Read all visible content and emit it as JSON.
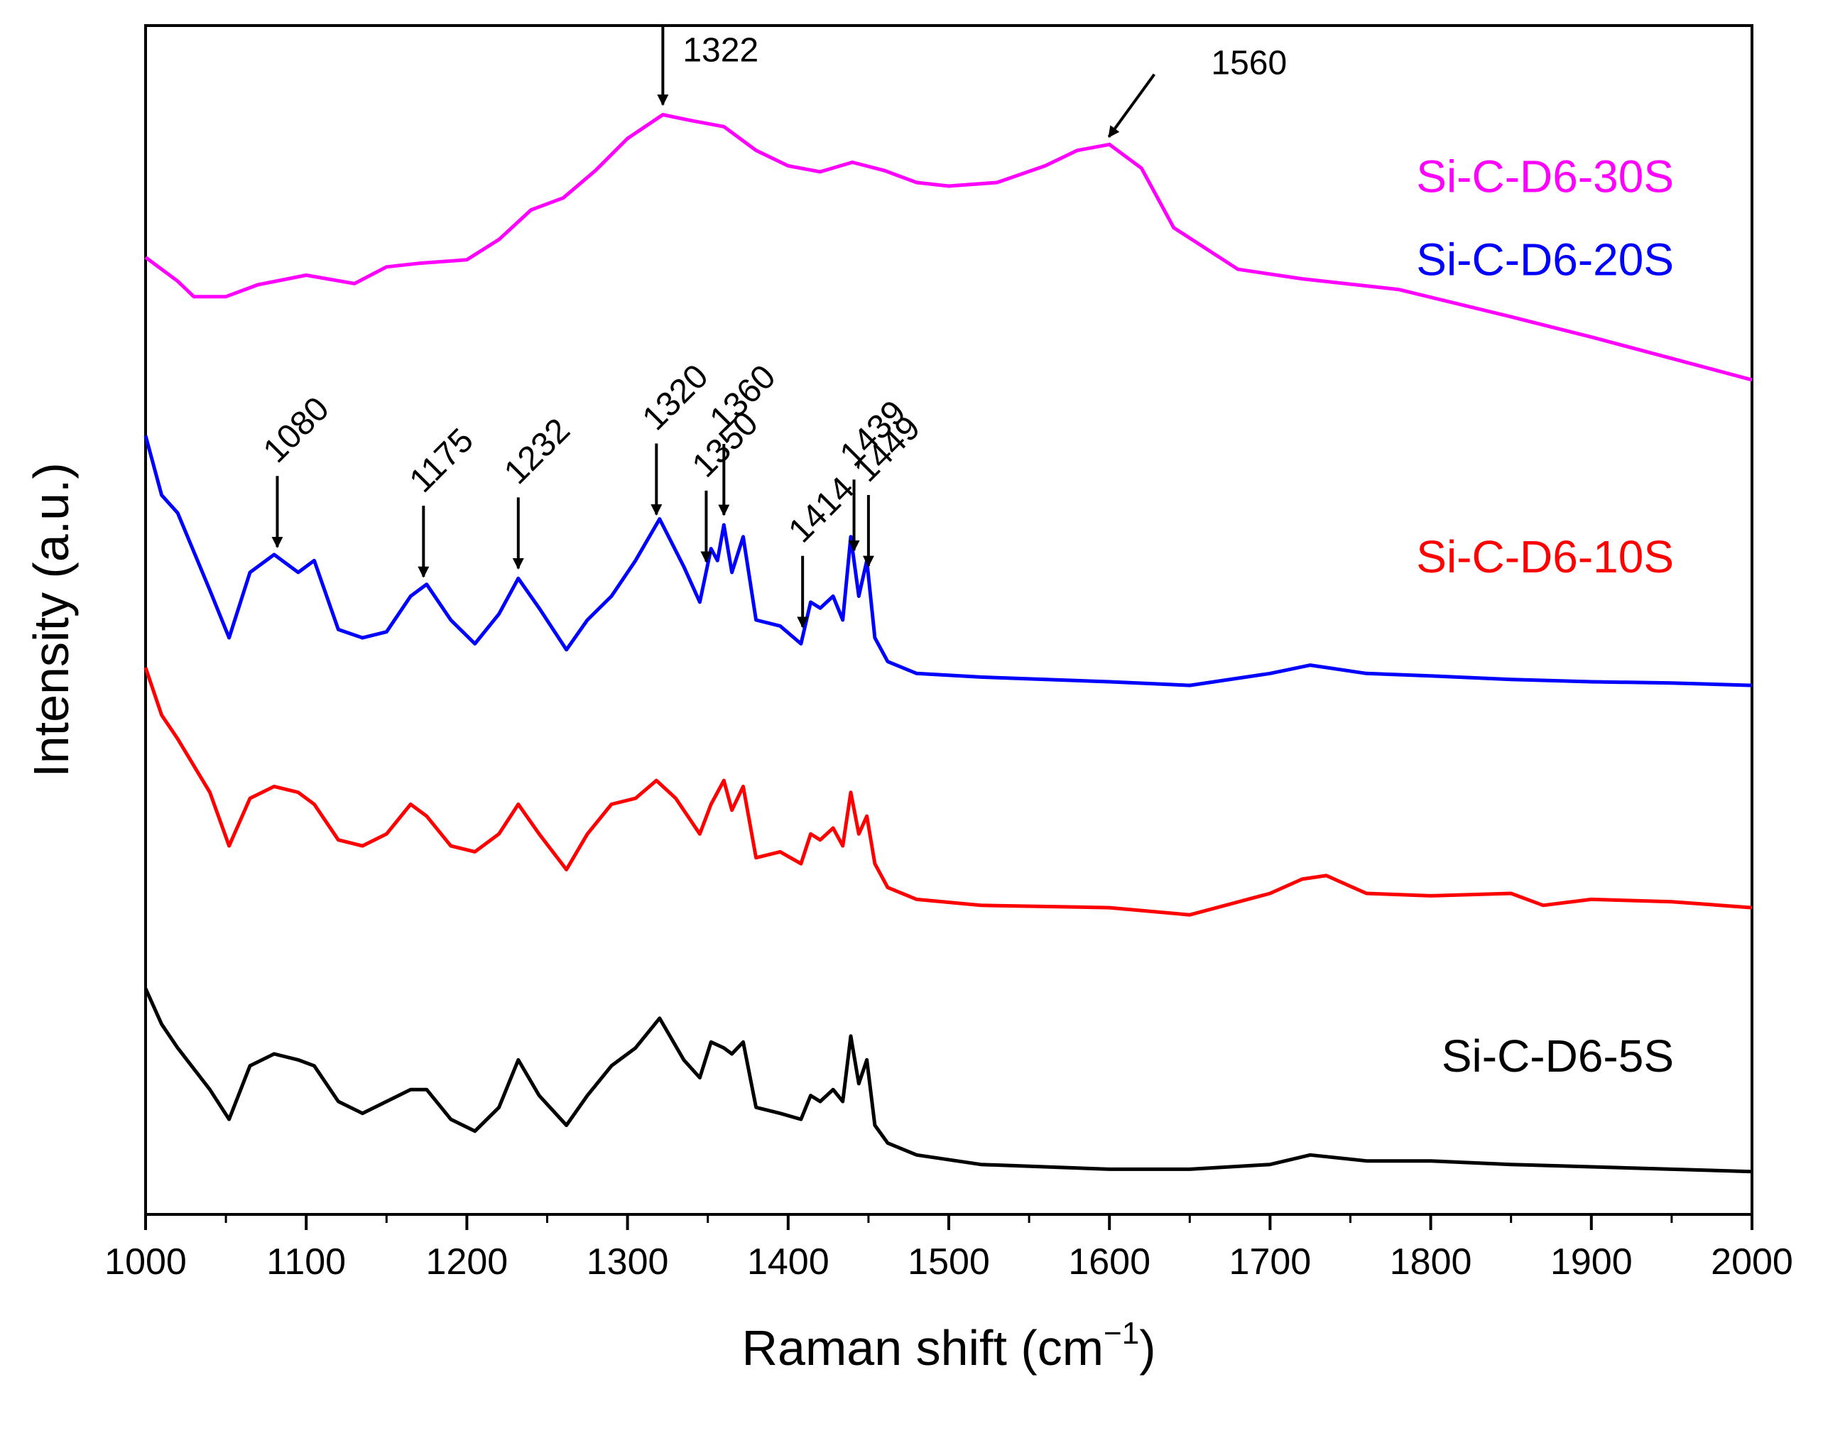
{
  "chart_data": {
    "type": "line",
    "xlabel": "Raman shift (cm",
    "xlabel_sup": "−1",
    "xlabel_close": ")",
    "ylabel": "Intensity (a.u.)",
    "xlim": [
      1000,
      2000
    ],
    "ylim": [
      0,
      10
    ],
    "grid": false,
    "x_ticks": [
      "1000",
      "1100",
      "1200",
      "1300",
      "1400",
      "1500",
      "1600",
      "1700",
      "1800",
      "1900",
      "2000"
    ],
    "series": [
      {
        "name": "Si-C-D6-30S",
        "color": "#ff00ff",
        "x": [
          1000,
          1020,
          1030,
          1050,
          1070,
          1100,
          1130,
          1150,
          1170,
          1200,
          1220,
          1240,
          1260,
          1280,
          1300,
          1322,
          1340,
          1360,
          1380,
          1400,
          1420,
          1440,
          1460,
          1480,
          1500,
          1530,
          1560,
          1580,
          1600,
          1620,
          1640,
          1680,
          1720,
          1780,
          1850,
          1900,
          1950,
          2000
        ],
        "y": [
          8.05,
          7.85,
          7.72,
          7.72,
          7.82,
          7.9,
          7.83,
          7.97,
          8.0,
          8.03,
          8.2,
          8.45,
          8.55,
          8.78,
          9.05,
          9.25,
          9.2,
          9.15,
          8.95,
          8.82,
          8.77,
          8.85,
          8.78,
          8.68,
          8.65,
          8.68,
          8.82,
          8.95,
          9.0,
          8.8,
          8.3,
          7.95,
          7.87,
          7.78,
          7.55,
          7.38,
          7.2,
          7.02
        ]
      },
      {
        "name": "Si-C-D6-20S",
        "color": "#0000ff",
        "x": [
          1000,
          1010,
          1020,
          1040,
          1052,
          1065,
          1080,
          1095,
          1105,
          1120,
          1135,
          1150,
          1165,
          1175,
          1190,
          1205,
          1220,
          1232,
          1245,
          1262,
          1275,
          1290,
          1305,
          1320,
          1335,
          1345,
          1352,
          1356,
          1360,
          1365,
          1372,
          1380,
          1395,
          1408,
          1414,
          1420,
          1428,
          1434,
          1439,
          1444,
          1449,
          1454,
          1462,
          1480,
          1520,
          1600,
          1650,
          1700,
          1725,
          1760,
          1800,
          1850,
          1900,
          1950,
          2000
        ],
        "y": [
          6.55,
          6.05,
          5.9,
          5.25,
          4.85,
          5.4,
          5.55,
          5.4,
          5.5,
          4.92,
          4.85,
          4.9,
          5.2,
          5.3,
          5.0,
          4.8,
          5.05,
          5.35,
          5.1,
          4.75,
          5.0,
          5.2,
          5.5,
          5.85,
          5.45,
          5.15,
          5.6,
          5.5,
          5.8,
          5.4,
          5.7,
          5.0,
          4.95,
          4.8,
          5.15,
          5.1,
          5.2,
          5.0,
          5.7,
          5.2,
          5.5,
          4.85,
          4.65,
          4.55,
          4.52,
          4.48,
          4.45,
          4.55,
          4.62,
          4.55,
          4.53,
          4.5,
          4.48,
          4.47,
          4.45
        ]
      },
      {
        "name": "Si-C-D6-10S",
        "color": "#ff0000",
        "x": [
          1000,
          1010,
          1020,
          1040,
          1052,
          1065,
          1080,
          1095,
          1105,
          1120,
          1135,
          1150,
          1165,
          1175,
          1190,
          1205,
          1220,
          1232,
          1245,
          1262,
          1275,
          1290,
          1305,
          1318,
          1330,
          1345,
          1352,
          1360,
          1365,
          1372,
          1380,
          1395,
          1408,
          1414,
          1420,
          1428,
          1434,
          1439,
          1444,
          1449,
          1454,
          1462,
          1480,
          1520,
          1600,
          1650,
          1700,
          1720,
          1735,
          1760,
          1800,
          1850,
          1870,
          1900,
          1950,
          2000
        ],
        "y": [
          4.6,
          4.2,
          4.0,
          3.55,
          3.1,
          3.5,
          3.6,
          3.55,
          3.45,
          3.15,
          3.1,
          3.2,
          3.45,
          3.35,
          3.1,
          3.05,
          3.2,
          3.45,
          3.2,
          2.9,
          3.2,
          3.45,
          3.5,
          3.65,
          3.5,
          3.2,
          3.45,
          3.65,
          3.4,
          3.6,
          3.0,
          3.05,
          2.95,
          3.2,
          3.15,
          3.25,
          3.1,
          3.55,
          3.2,
          3.35,
          2.95,
          2.75,
          2.65,
          2.6,
          2.58,
          2.52,
          2.7,
          2.82,
          2.85,
          2.7,
          2.68,
          2.7,
          2.6,
          2.65,
          2.63,
          2.58
        ]
      },
      {
        "name": "Si-C-D6-5S",
        "color": "#000000",
        "x": [
          1000,
          1010,
          1020,
          1040,
          1052,
          1065,
          1080,
          1095,
          1105,
          1120,
          1135,
          1150,
          1165,
          1175,
          1190,
          1205,
          1220,
          1232,
          1245,
          1262,
          1275,
          1290,
          1305,
          1320,
          1335,
          1345,
          1352,
          1360,
          1365,
          1372,
          1380,
          1395,
          1408,
          1414,
          1420,
          1428,
          1434,
          1439,
          1444,
          1449,
          1454,
          1462,
          1480,
          1520,
          1600,
          1650,
          1700,
          1725,
          1760,
          1800,
          1850,
          1900,
          1950,
          2000
        ],
        "y": [
          1.9,
          1.6,
          1.4,
          1.05,
          0.8,
          1.25,
          1.35,
          1.3,
          1.25,
          0.95,
          0.85,
          0.95,
          1.05,
          1.05,
          0.8,
          0.7,
          0.9,
          1.3,
          1.0,
          0.75,
          1.0,
          1.25,
          1.4,
          1.65,
          1.3,
          1.15,
          1.45,
          1.4,
          1.35,
          1.45,
          0.9,
          0.85,
          0.8,
          1.0,
          0.95,
          1.05,
          0.95,
          1.5,
          1.1,
          1.3,
          0.75,
          0.6,
          0.5,
          0.42,
          0.38,
          0.38,
          0.42,
          0.5,
          0.45,
          0.45,
          0.42,
          0.4,
          0.38,
          0.36
        ]
      }
    ],
    "annotations": [
      {
        "label": "1322",
        "x": 1322,
        "series": "Si-C-D6-30S",
        "rotated": false,
        "arrow": "down"
      },
      {
        "label": "1560",
        "x": 1597,
        "series": "Si-C-D6-30S",
        "rotated": false,
        "arrow": "diagonal"
      },
      {
        "label": "1080",
        "x": 1082,
        "series": "Si-C-D6-20S",
        "rotated": true,
        "arrow": "down"
      },
      {
        "label": "1175",
        "x": 1173,
        "series": "Si-C-D6-20S",
        "rotated": true,
        "arrow": "down"
      },
      {
        "label": "1232",
        "x": 1232,
        "series": "Si-C-D6-20S",
        "rotated": true,
        "arrow": "down"
      },
      {
        "label": "1320",
        "x": 1318,
        "series": "Si-C-D6-20S",
        "rotated": true,
        "arrow": "down"
      },
      {
        "label": "1350",
        "x": 1349,
        "series": "Si-C-D6-20S",
        "rotated": true,
        "arrow": "down"
      },
      {
        "label": "1360",
        "x": 1360,
        "series": "Si-C-D6-20S",
        "rotated": true,
        "arrow": "down"
      },
      {
        "label": "1414",
        "x": 1409,
        "series": "Si-C-D6-20S",
        "rotated": true,
        "arrow": "down"
      },
      {
        "label": "1439",
        "x": 1441,
        "series": "Si-C-D6-20S",
        "rotated": true,
        "arrow": "down"
      },
      {
        "label": "1449",
        "x": 1450,
        "series": "Si-C-D6-20S",
        "rotated": true,
        "arrow": "down"
      }
    ]
  }
}
